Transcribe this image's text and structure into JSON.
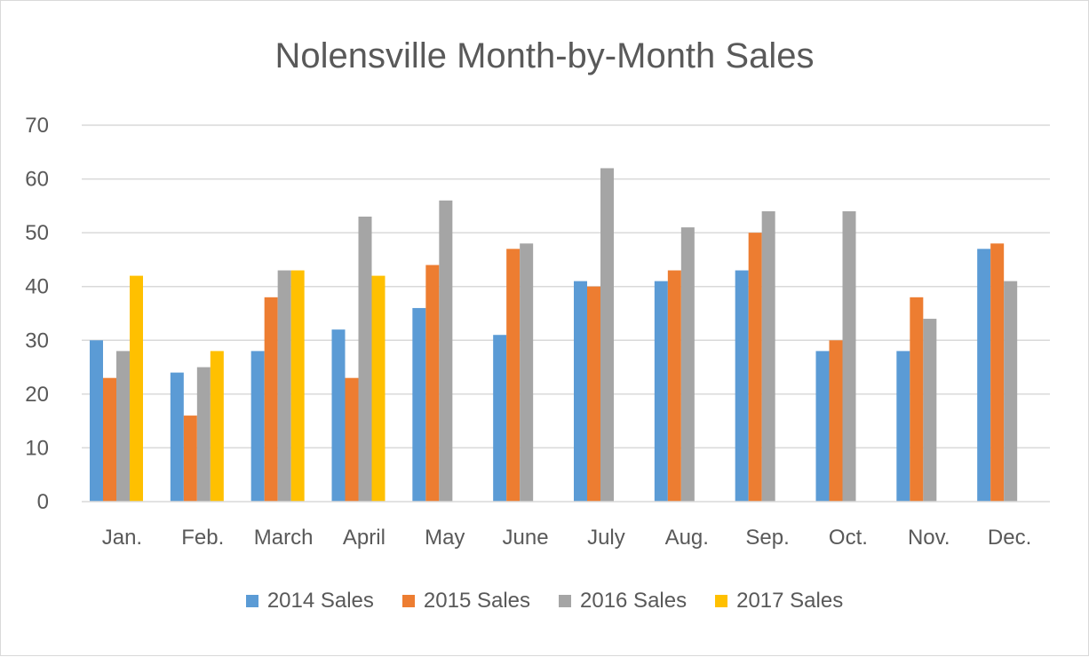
{
  "chart_data": {
    "type": "bar",
    "title": "Nolensville Month-by-Month Sales",
    "xlabel": "",
    "ylabel": "",
    "ylim": [
      0,
      70
    ],
    "yticks": [
      0,
      10,
      20,
      30,
      40,
      50,
      60,
      70
    ],
    "grid": true,
    "legend_position": "bottom",
    "categories": [
      "Jan.",
      "Feb.",
      "March",
      "April",
      "May",
      "June",
      "July",
      "Aug.",
      "Sep.",
      "Oct.",
      "Nov.",
      "Dec."
    ],
    "series": [
      {
        "name": "2014 Sales",
        "color": "#5b9bd5",
        "values": [
          30,
          24,
          28,
          32,
          36,
          31,
          41,
          41,
          43,
          28,
          28,
          47
        ]
      },
      {
        "name": "2015 Sales",
        "color": "#ed7d31",
        "values": [
          23,
          16,
          38,
          23,
          44,
          47,
          40,
          43,
          50,
          30,
          38,
          48
        ]
      },
      {
        "name": "2016 Sales",
        "color": "#a5a5a5",
        "values": [
          28,
          25,
          43,
          53,
          56,
          48,
          62,
          51,
          54,
          54,
          34,
          41
        ]
      },
      {
        "name": "2017 Sales",
        "color": "#ffc000",
        "values": [
          42,
          28,
          43,
          42,
          null,
          null,
          null,
          null,
          null,
          null,
          null,
          null
        ]
      }
    ]
  }
}
